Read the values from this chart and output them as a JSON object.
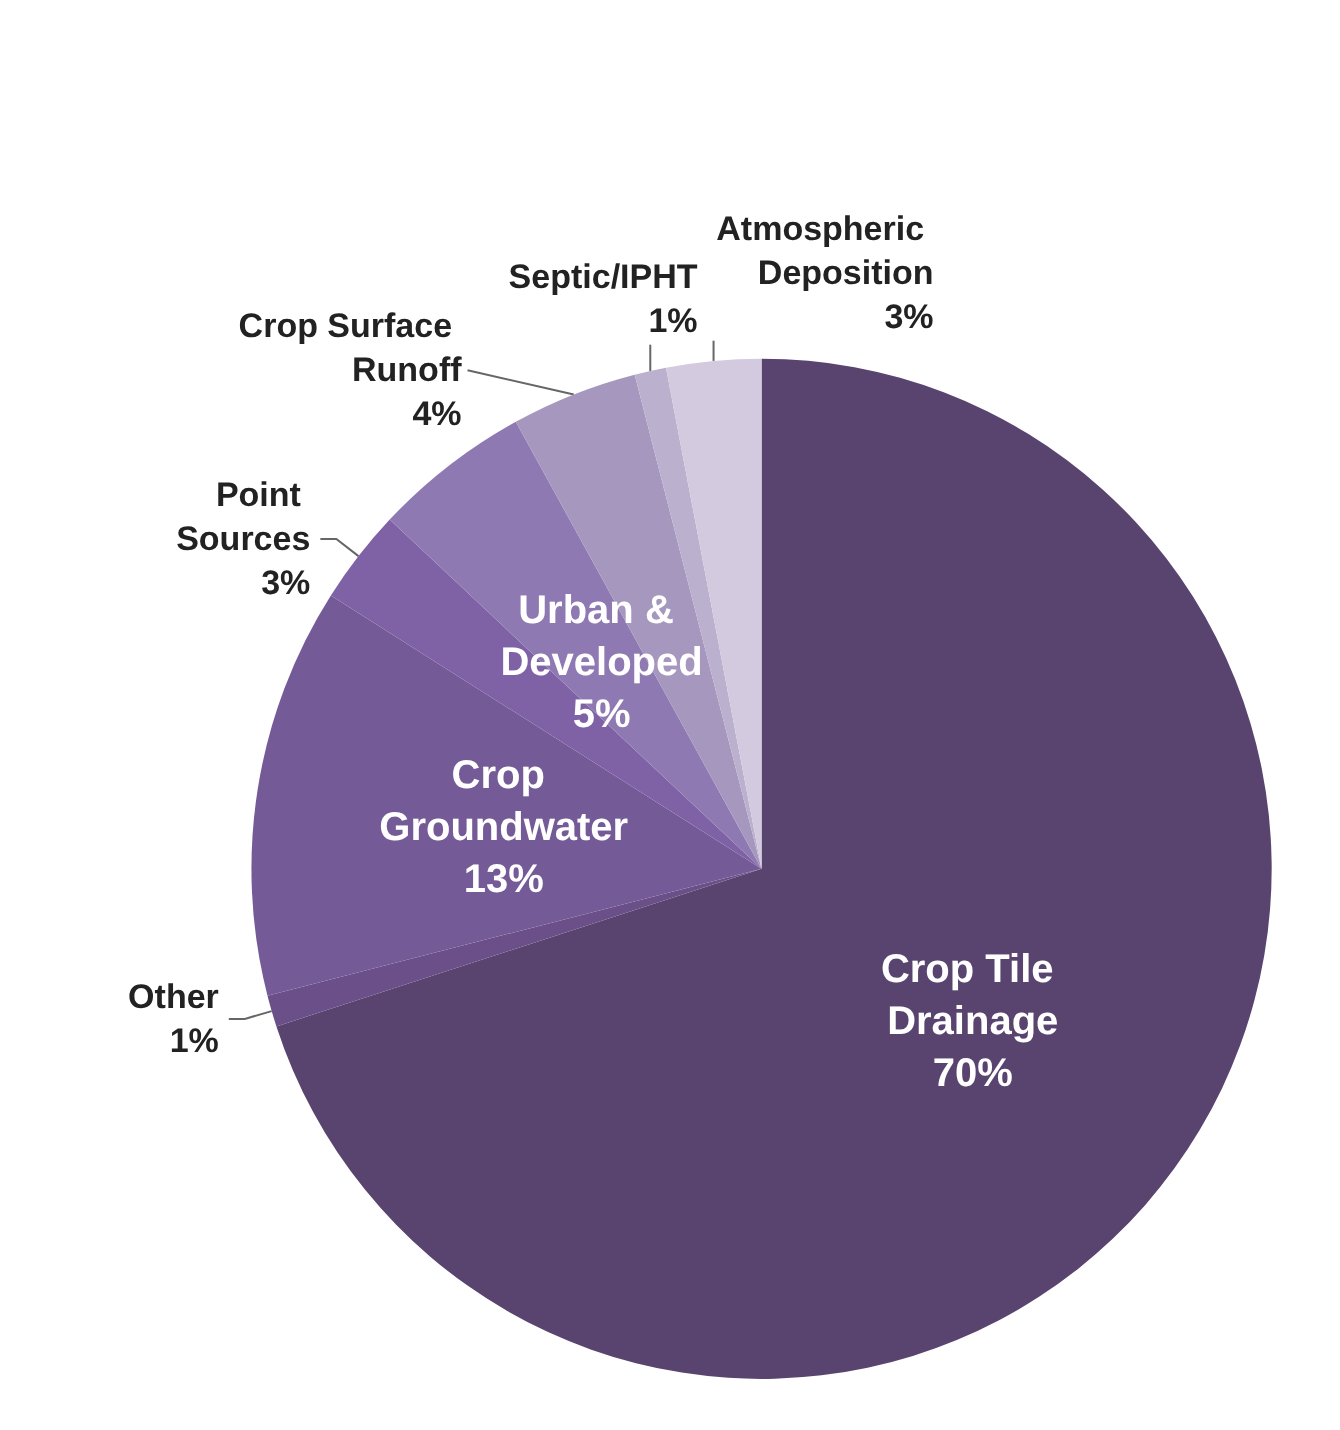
{
  "chart_data": {
    "type": "pie",
    "categories": [
      "Crop Tile Drainage",
      "Other",
      "Crop Groundwater",
      "Point Sources",
      "Urban & Developed",
      "Crop Surface Runoff",
      "Septic/IPHT",
      "Atmospheric Deposition"
    ],
    "values": [
      70,
      1,
      13,
      3,
      5,
      4,
      1,
      3
    ],
    "value_labels": [
      "70%",
      "1%",
      "13%",
      "3%",
      "5%",
      "4%",
      "1%",
      "3%"
    ],
    "colors": [
      "#59446f",
      "#6a4f88",
      "#755a98",
      "#7f62a6",
      "#8f79b2",
      "#a697be",
      "#bbb0cd",
      "#d3cadf"
    ],
    "legend": false
  }
}
